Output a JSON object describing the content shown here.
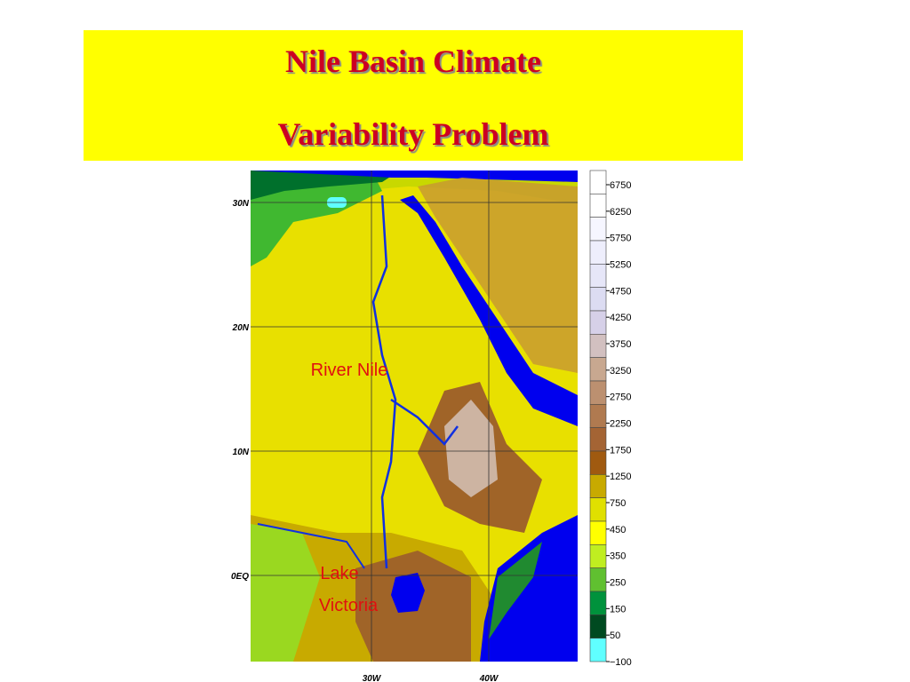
{
  "title": {
    "lines": [
      "Nile Basin Climate",
      "Variability Problem"
    ]
  },
  "map": {
    "lat_labels": [
      "30N",
      "20N",
      "10N",
      "0EQ"
    ],
    "lon_labels": [
      "30W",
      "40W"
    ],
    "annotations": [
      "River Nile",
      "Lake",
      "Victoria"
    ]
  },
  "colorbar": {
    "labels": [
      "6750",
      "6250",
      "5750",
      "5250",
      "4750",
      "4250",
      "3750",
      "3250",
      "2750",
      "2250",
      "1750",
      "1250",
      "750",
      "450",
      "350",
      "250",
      "150",
      "50",
      "−100"
    ],
    "colors": [
      "#ffffff",
      "#ffffff",
      "#f6f6ff",
      "#eeeefc",
      "#e6e6f8",
      "#dcdcf2",
      "#d6d0e8",
      "#d2c0c0",
      "#c8a890",
      "#bc9070",
      "#b07a50",
      "#a46434",
      "#a05a10",
      "#c8aa00",
      "#e0e000",
      "#ffff00",
      "#c0ee20",
      "#60c030",
      "#00923c",
      "#004a20",
      "#60ffff"
    ]
  }
}
